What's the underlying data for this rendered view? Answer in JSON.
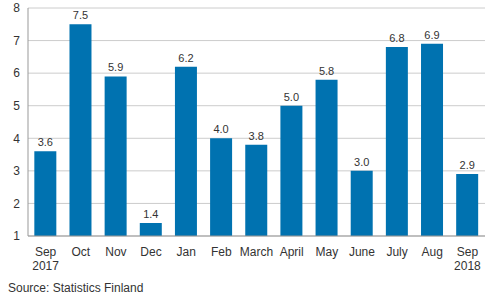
{
  "chart_data": {
    "type": "bar",
    "categories": [
      "Sep 2017",
      "Oct",
      "Nov",
      "Dec",
      "Jan",
      "Feb",
      "March",
      "April",
      "May",
      "June",
      "July",
      "Aug",
      "Sep 2018"
    ],
    "values": [
      3.6,
      7.5,
      5.9,
      1.4,
      6.2,
      4.0,
      3.8,
      5.0,
      5.8,
      3.0,
      6.8,
      6.9,
      2.9
    ],
    "value_labels": [
      "3.6",
      "7.5",
      "5.9",
      "1.4",
      "6.2",
      "4.0",
      "3.8",
      "5.0",
      "5.8",
      "3.0",
      "6.8",
      "6.9",
      "2.9"
    ],
    "color": "#0072b0",
    "ylim": [
      1,
      8
    ],
    "yticks": [
      1,
      2,
      3,
      4,
      5,
      6,
      7,
      8
    ],
    "grid": true,
    "data_labels": true,
    "source": "Source: Statistics Finland"
  }
}
